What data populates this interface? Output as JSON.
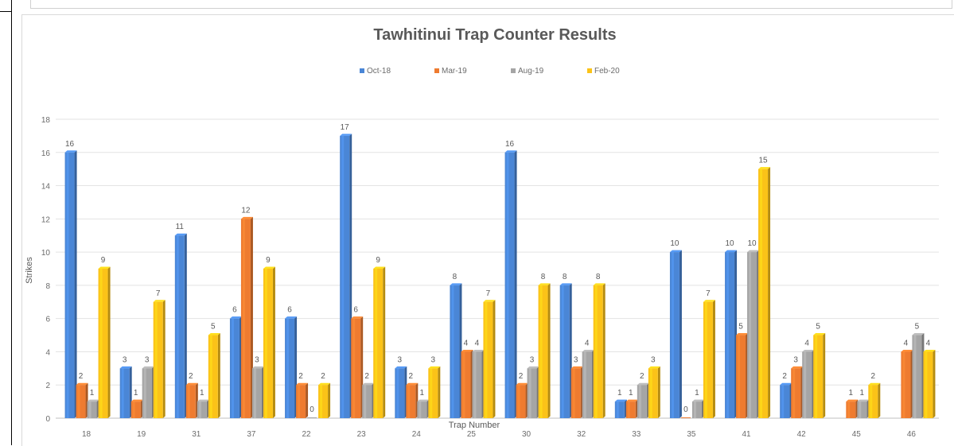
{
  "chart_data": {
    "type": "bar",
    "title": "Tawhitinui Trap Counter Results",
    "xlabel": "Trap Number",
    "ylabel": "Strikes",
    "ylim": [
      0,
      18
    ],
    "yticks": [
      "0",
      "2",
      "4",
      "6",
      "8",
      "10",
      "12",
      "14",
      "16",
      "18"
    ],
    "grid": true,
    "legend_position": "top",
    "categories": [
      "18",
      "19",
      "31",
      "37",
      "22",
      "23",
      "24",
      "25",
      "30",
      "32",
      "33",
      "35",
      "41",
      "42",
      "45",
      "46"
    ],
    "series": [
      {
        "name": "Oct-18",
        "color": "#4a86d6",
        "values": [
          16,
          3,
          11,
          6,
          6,
          17,
          3,
          8,
          16,
          8,
          1,
          10,
          10,
          2,
          null,
          null
        ],
        "labels": [
          "16",
          "3",
          "11",
          "6",
          "6",
          "17",
          "3",
          "8",
          "16",
          "8",
          "1",
          "10",
          "10",
          "2",
          "",
          ""
        ]
      },
      {
        "name": "Mar-19",
        "color": "#ee7b30",
        "values": [
          2,
          1,
          2,
          12,
          2,
          6,
          2,
          4,
          2,
          3,
          1,
          0,
          5,
          3,
          1,
          4
        ],
        "labels": [
          "2",
          "1",
          "2",
          "12",
          "2",
          "6",
          "2",
          "4",
          "2",
          "3",
          "1",
          "0",
          "5",
          "3",
          "1",
          "4"
        ]
      },
      {
        "name": "Aug-19",
        "color": "#a5a5a5",
        "values": [
          1,
          3,
          1,
          3,
          0,
          2,
          1,
          4,
          3,
          4,
          2,
          1,
          10,
          4,
          1,
          5
        ],
        "labels": [
          "1",
          "3",
          "1",
          "3",
          "0",
          "2",
          "1",
          "4",
          "3",
          "4",
          "2",
          "1",
          "10",
          "4",
          "1",
          "5"
        ]
      },
      {
        "name": "Feb-20",
        "color": "#fbc318",
        "values": [
          9,
          7,
          5,
          9,
          2,
          9,
          3,
          7,
          8,
          8,
          3,
          7,
          15,
          5,
          2,
          4
        ],
        "labels": [
          "9",
          "7",
          "5",
          "9",
          "2",
          "9",
          "3",
          "7",
          "8",
          "8",
          "3",
          "7",
          "15",
          "5",
          "2",
          "4"
        ]
      }
    ]
  }
}
